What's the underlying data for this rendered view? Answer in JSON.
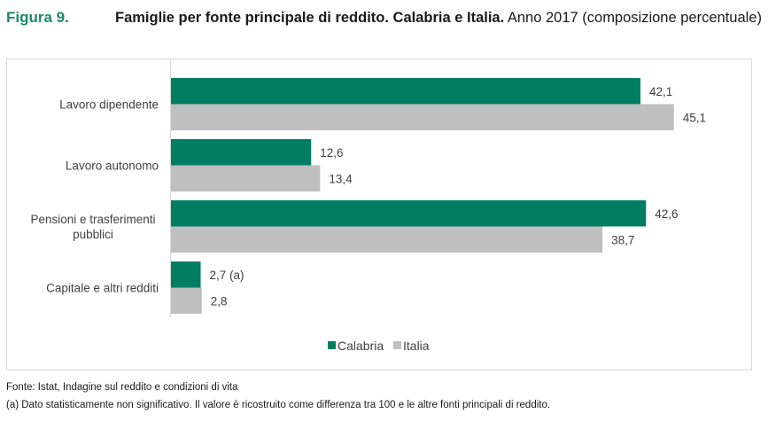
{
  "figure": {
    "label": "Figura 9.",
    "title_bold": "Famiglie per fonte principale di reddito. Calabria e Italia.",
    "title_rest": " Anno 2017 (composizione percentuale)"
  },
  "colors": {
    "calabria": "#007d63",
    "italia": "#bfbfbf",
    "axis": "#d9d9d9"
  },
  "chart_data": {
    "type": "bar",
    "orientation": "horizontal",
    "title": "Famiglie per fonte principale di reddito. Calabria e Italia. Anno 2017 (composizione percentuale)",
    "categories": [
      "Lavoro dipendente",
      "Lavoro autonomo",
      "Pensioni e trasferimenti pubblici",
      "Capitale e altri redditi"
    ],
    "category_lines": [
      [
        "Lavoro dipendente"
      ],
      [
        "Lavoro autonomo"
      ],
      [
        "Pensioni e trasferimenti",
        "pubblici"
      ],
      [
        "Capitale e altri redditi"
      ]
    ],
    "series": [
      {
        "name": "Calabria",
        "values": [
          42.1,
          12.6,
          42.6,
          2.7
        ],
        "labels": [
          "42,1",
          "12,6",
          "42,6",
          "2,7 (a)"
        ]
      },
      {
        "name": "Italia",
        "values": [
          45.1,
          13.4,
          38.7,
          2.8
        ],
        "labels": [
          "45,1",
          "13,4",
          "38,7",
          "2,8"
        ]
      }
    ],
    "xlim": [
      0,
      50
    ],
    "grid": false,
    "legend": "bottom-center",
    "xlabel": "",
    "ylabel": ""
  },
  "footer": {
    "source": "Fonte: Istat, Indagine sul reddito e condizioni di vita",
    "note": "(a) Dato statisticamente non significativo. Il valore è ricostruito come differenza tra 100 e le altre fonti principali di reddito."
  }
}
